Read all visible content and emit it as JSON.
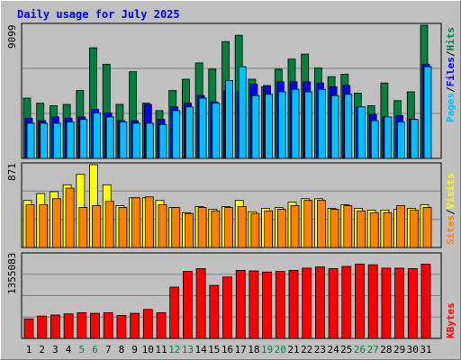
{
  "chart_data": [
    {
      "type": "bar",
      "panel": "top",
      "title": "Daily usage for July 2025",
      "categories": [
        "1",
        "2",
        "3",
        "4",
        "5",
        "6",
        "7",
        "8",
        "9",
        "10",
        "11",
        "12",
        "13",
        "14",
        "15",
        "16",
        "17",
        "18",
        "19",
        "20",
        "21",
        "22",
        "23",
        "24",
        "25",
        "26",
        "27",
        "28",
        "29",
        "30",
        "31"
      ],
      "weekend_days": [
        "5",
        "6",
        "12",
        "13",
        "19",
        "20",
        "26",
        "27"
      ],
      "ylabel_max": "9099",
      "ylim": [
        0,
        10600
      ],
      "series": [
        {
          "name": "Hits",
          "color": "#008040",
          "values": [
            4800,
            4400,
            4200,
            4300,
            5400,
            8800,
            7500,
            4300,
            6900,
            4400,
            3800,
            5400,
            6300,
            7600,
            7100,
            9300,
            9800,
            6300,
            5700,
            7100,
            7900,
            8300,
            7200,
            6500,
            6700,
            5200,
            4200,
            6000,
            4600,
            5300,
            10600
          ]
        },
        {
          "name": "Files",
          "color": "#0000ff",
          "values": [
            3200,
            3000,
            3300,
            3200,
            3300,
            3900,
            3600,
            3000,
            3000,
            4300,
            3100,
            4100,
            4400,
            5000,
            4500,
            5400,
            5300,
            5900,
            5800,
            6100,
            6100,
            6100,
            6000,
            5700,
            5800,
            4100,
            3500,
            3300,
            3400,
            3100,
            7500
          ]
        },
        {
          "name": "Pages",
          "color": "#00c0ff",
          "values": [
            2800,
            2800,
            2800,
            2900,
            3100,
            3600,
            3300,
            2900,
            2800,
            2800,
            2700,
            3800,
            4100,
            4800,
            4400,
            6200,
            7300,
            5000,
            5100,
            5300,
            5500,
            5300,
            5500,
            5000,
            5100,
            4100,
            3000,
            3300,
            2900,
            3100,
            7300
          ]
        }
      ]
    },
    {
      "type": "bar",
      "panel": "middle",
      "ylabel_max": "871",
      "ylim": [
        0,
        950
      ],
      "series": [
        {
          "name": "Visits",
          "color": "#ffff00",
          "values": [
            540,
            620,
            640,
            720,
            840,
            950,
            720,
            480,
            570,
            570,
            540,
            460,
            400,
            470,
            440,
            470,
            540,
            410,
            450,
            460,
            520,
            560,
            560,
            450,
            490,
            450,
            430,
            430,
            440,
            450,
            490
          ]
        },
        {
          "name": "Sites",
          "color": "#ff8000",
          "values": [
            490,
            490,
            560,
            680,
            460,
            480,
            530,
            460,
            570,
            580,
            490,
            460,
            390,
            460,
            420,
            460,
            470,
            390,
            420,
            440,
            480,
            540,
            540,
            440,
            480,
            420,
            400,
            400,
            480,
            430,
            460
          ]
        }
      ]
    },
    {
      "type": "bar",
      "panel": "bottom",
      "ylabel_max": "1355083",
      "ylim": [
        0,
        1500000
      ],
      "series": [
        {
          "name": "KBytes",
          "color": "#ff0000",
          "values": [
            350000,
            400000,
            420000,
            440000,
            460000,
            450000,
            460000,
            410000,
            450000,
            520000,
            460000,
            920000,
            1200000,
            1250000,
            950000,
            1100000,
            1220000,
            1210000,
            1190000,
            1200000,
            1220000,
            1260000,
            1280000,
            1250000,
            1290000,
            1330000,
            1320000,
            1260000,
            1260000,
            1250000,
            1330000
          ]
        }
      ]
    }
  ],
  "legend": {
    "top": [
      "Pages",
      "/",
      "Files",
      "/",
      "Hits"
    ],
    "top_colors": [
      "#00c0ff",
      "#000000",
      "#0000ff",
      "#000000",
      "#008040"
    ],
    "middle": [
      "Sites",
      "/",
      "Visits"
    ],
    "middle_colors": [
      "#ff8000",
      "#000000",
      "#ffff00"
    ],
    "bottom": [
      "KBytes"
    ],
    "bottom_colors": [
      "#ff0000"
    ]
  },
  "colors": {
    "background": "#c0c0c0",
    "title": "#0000ff",
    "weekday_label": "#000000",
    "weekend_label": "#008040"
  }
}
